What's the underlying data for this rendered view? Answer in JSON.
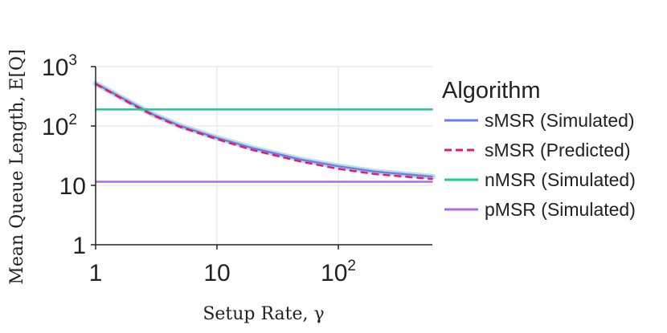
{
  "chart_data": {
    "type": "line",
    "title": "",
    "xlabel": "Setup Rate, γ",
    "ylabel": "Mean Queue Length, E[Q]",
    "xscale": "log",
    "yscale": "log",
    "xlim": [
      1,
      600
    ],
    "ylim": [
      1,
      1000
    ],
    "grid": true,
    "x_ticks": [
      {
        "value": 1,
        "base": "1",
        "exp": ""
      },
      {
        "value": 10,
        "base": "10",
        "exp": ""
      },
      {
        "value": 100,
        "base": "10",
        "exp": "2"
      }
    ],
    "y_ticks": [
      {
        "value": 1,
        "base": "1",
        "exp": ""
      },
      {
        "value": 10,
        "base": "10",
        "exp": ""
      },
      {
        "value": 100,
        "base": "10",
        "exp": "2"
      },
      {
        "value": 1000,
        "base": "10",
        "exp": "3"
      }
    ],
    "legend": {
      "title": "Algorithm",
      "placement": "right"
    },
    "series": [
      {
        "name": "sMSR (Simulated)",
        "color": "#6e7cf0",
        "style": "solid",
        "band_color": "#a8d8d0",
        "x": [
          1,
          1.5,
          2,
          3,
          5,
          10,
          20,
          50,
          100,
          200,
          600
        ],
        "y": [
          520,
          330,
          240,
          155,
          100,
          63,
          42,
          27,
          21,
          17,
          14
        ]
      },
      {
        "name": "sMSR (Predicted)",
        "color": "#e8186e",
        "style": "dashed",
        "x": [
          1,
          1.5,
          2,
          3,
          5,
          10,
          20,
          50,
          100,
          200,
          600
        ],
        "y": [
          510,
          320,
          230,
          150,
          96,
          60,
          39,
          25,
          19,
          15.5,
          12.8
        ]
      },
      {
        "name": "nMSR (Simulated)",
        "color": "#1cc98f",
        "style": "solid",
        "x": [
          1,
          600
        ],
        "y": [
          190,
          190
        ]
      },
      {
        "name": "pMSR (Simulated)",
        "color": "#a86ee8",
        "style": "solid",
        "x": [
          1,
          600
        ],
        "y": [
          11.5,
          11.5
        ]
      }
    ]
  }
}
